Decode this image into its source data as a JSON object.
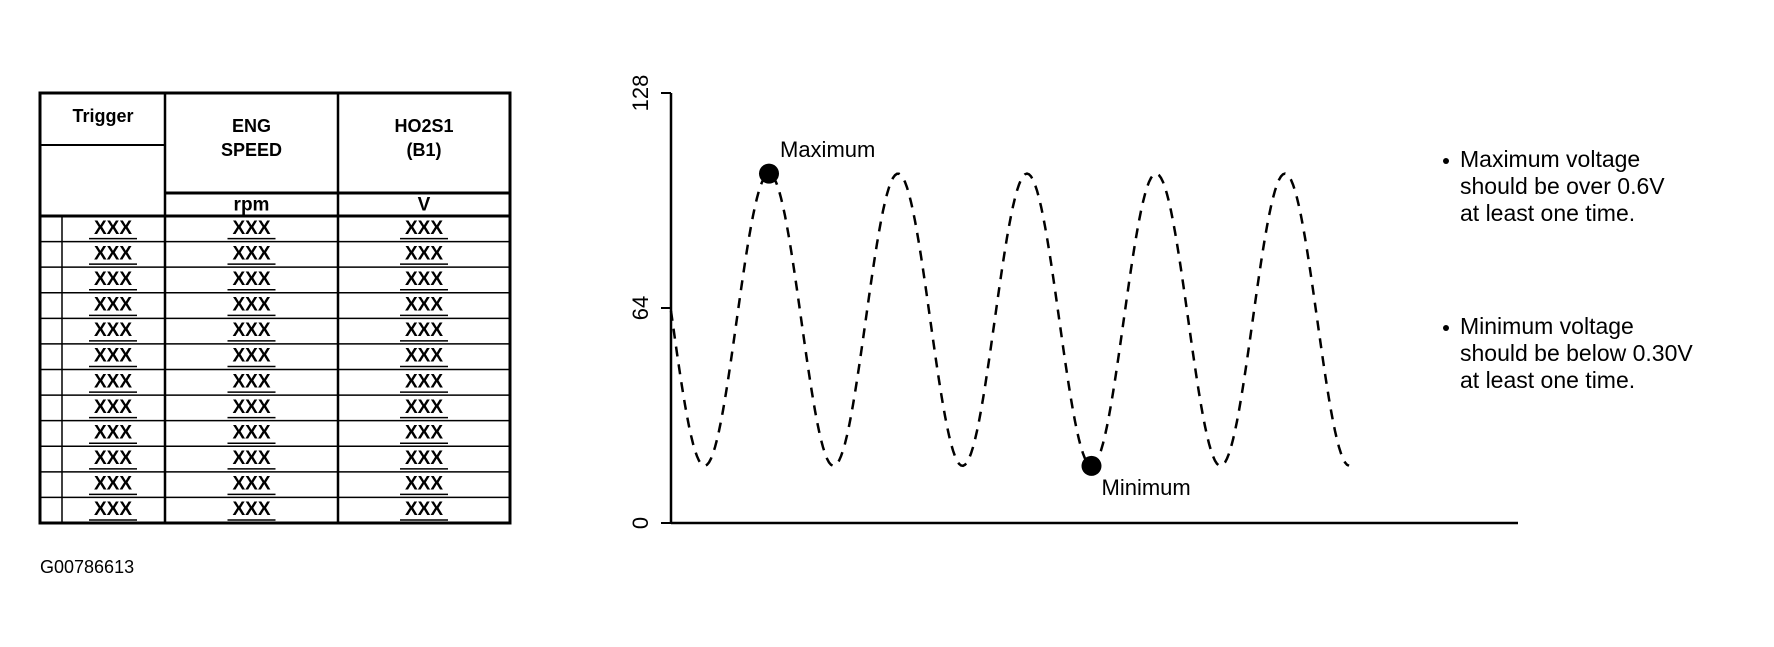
{
  "table": {
    "header": [
      [
        "Trigger"
      ],
      [
        "ENG",
        "SPEED"
      ],
      [
        "HO2S1",
        "(B1)"
      ]
    ],
    "units": [
      "rpm",
      "V"
    ],
    "rows": [
      [
        "XXX",
        "XXX",
        "XXX"
      ],
      [
        "XXX",
        "XXX",
        "XXX"
      ],
      [
        "XXX",
        "XXX",
        "XXX"
      ],
      [
        "XXX",
        "XXX",
        "XXX"
      ],
      [
        "XXX",
        "XXX",
        "XXX"
      ],
      [
        "XXX",
        "XXX",
        "XXX"
      ],
      [
        "XXX",
        "XXX",
        "XXX"
      ],
      [
        "XXX",
        "XXX",
        "XXX"
      ],
      [
        "XXX",
        "XXX",
        "XXX"
      ],
      [
        "XXX",
        "XXX",
        "XXX"
      ],
      [
        "XXX",
        "XXX",
        "XXX"
      ],
      [
        "XXX",
        "XXX",
        "XXX"
      ]
    ]
  },
  "graph": {
    "yticks": [
      0,
      64,
      128
    ],
    "annotations": {
      "max": "Maximum",
      "min": "Minimum"
    }
  },
  "notes": [
    [
      "Maximum voltage",
      "should be over 0.6V",
      "at least one time."
    ],
    [
      "Minimum voltage",
      "should be below 0.30V",
      "at least one time."
    ]
  ],
  "figure_id": "G00786613"
}
